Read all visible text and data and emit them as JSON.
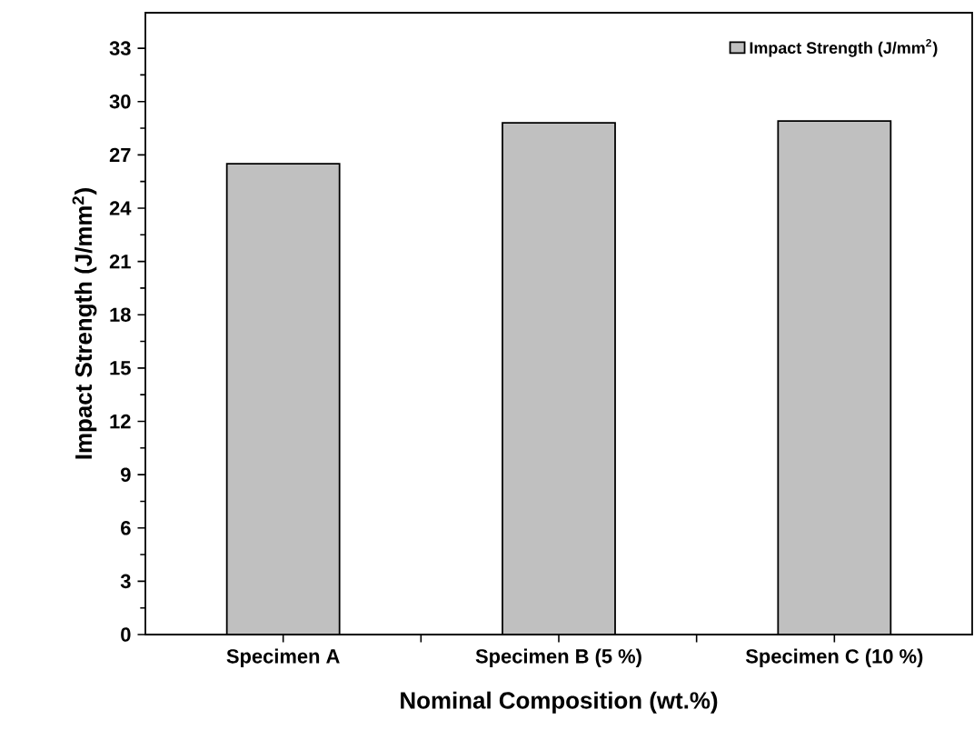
{
  "chart_data": {
    "type": "bar",
    "xlabel": "Nominal Composition (wt.%)",
    "ylabel": "Impact Strength (J/mm$^{2}$)",
    "categories": [
      "Specimen A",
      "Specimen B (5 %)",
      "Specimen C (10 %)"
    ],
    "series": [
      {
        "name": "Impact Strength (J/mm$^{2}$)",
        "color": "#c0c0c0",
        "values": [
          26.5,
          28.8,
          28.9
        ]
      }
    ],
    "ylim": [
      0,
      35
    ],
    "yticks": [
      0,
      3,
      6,
      9,
      12,
      15,
      18,
      21,
      24,
      27,
      30,
      33
    ],
    "grid": false,
    "legend": "top right"
  }
}
